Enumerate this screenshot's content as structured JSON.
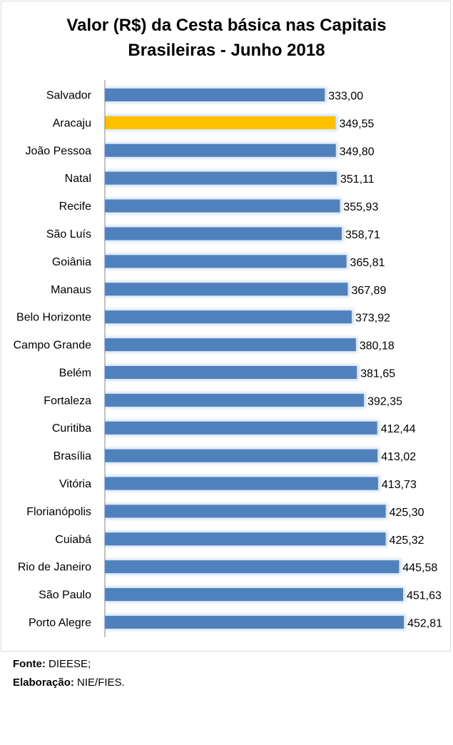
{
  "chart_data": {
    "type": "bar",
    "orientation": "horizontal",
    "title": "Valor (R$) da Cesta básica nas Capitais Brasileiras - Junho 2018",
    "title_lines": [
      "Valor (R$) da Cesta básica nas Capitais",
      "Brasileiras - Junho 2018"
    ],
    "categories": [
      "Salvador",
      "Aracaju",
      "João Pessoa",
      "Natal",
      "Recife",
      "São Luís",
      "Goiânia",
      "Manaus",
      "Belo Horizonte",
      "Campo Grande",
      "Belém",
      "Fortaleza",
      "Curitiba",
      "Brasília",
      "Vitória",
      "Florianópolis",
      "Cuiabá",
      "Rio de Janeiro",
      "São Paulo",
      "Porto Alegre"
    ],
    "values": [
      333.0,
      349.55,
      349.8,
      351.11,
      355.93,
      358.71,
      365.81,
      367.89,
      373.92,
      380.18,
      381.65,
      392.35,
      412.44,
      413.02,
      413.73,
      425.3,
      425.32,
      445.58,
      451.63,
      452.81
    ],
    "labels": [
      "333,00",
      "349,55",
      "349,80",
      "351,11",
      "355,93",
      "358,71",
      "365,81",
      "367,89",
      "373,92",
      "380,18",
      "381,65",
      "392,35",
      "412,44",
      "413,02",
      "413,73",
      "425,30",
      "425,32",
      "445,58",
      "451,63",
      "452,81"
    ],
    "highlight": "Aracaju",
    "xlim": [
      0,
      490
    ],
    "grid": false,
    "colors": {
      "bar": "#4f81bd",
      "highlight": "#ffc000"
    }
  },
  "footer": {
    "source_label": "Fonte:",
    "source_value": "DIEESE;",
    "credit_label": "Elaboração:",
    "credit_value": "NIE/FIES."
  }
}
